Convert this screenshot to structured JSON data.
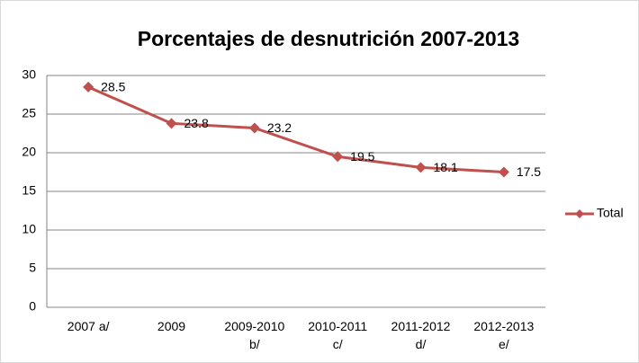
{
  "chart_data": {
    "type": "line",
    "title": "Porcentajes de desnutrición 2007-2013",
    "categories": [
      "2007 a/",
      "2009",
      "2009-2010\nb/",
      "2010-2011\nc/",
      "2011-2012\nd/",
      "2012-2013\ne/"
    ],
    "series": [
      {
        "name": "Total",
        "color": "#c0504d",
        "values": [
          28.5,
          23.8,
          23.2,
          19.5,
          18.1,
          17.5
        ]
      }
    ],
    "ylim": [
      0,
      30
    ],
    "yticks": [
      0,
      5,
      10,
      15,
      20,
      25,
      30
    ],
    "grid": true,
    "legend": "right",
    "data_labels": true
  }
}
